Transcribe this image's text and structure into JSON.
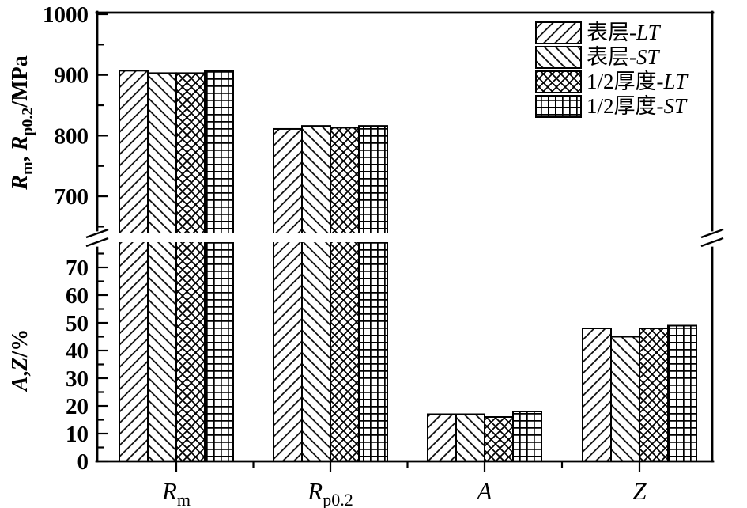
{
  "chart_data": {
    "type": "bar",
    "title": "",
    "background": "#ffffff",
    "foreground": "#000000",
    "axis_break": true,
    "legend_position": "top-right",
    "categories": [
      {
        "id": "Rm",
        "panel": "top",
        "unit": "MPa",
        "parts": [
          {
            "text": "R",
            "italic": true
          },
          {
            "text": "m",
            "sub": true
          }
        ]
      },
      {
        "id": "Rp0.2",
        "panel": "top",
        "unit": "MPa",
        "parts": [
          {
            "text": "R",
            "italic": true
          },
          {
            "text": "p0.2",
            "sub": true
          }
        ]
      },
      {
        "id": "A",
        "panel": "bottom",
        "unit": "%",
        "parts": [
          {
            "text": "A",
            "italic": true
          }
        ]
      },
      {
        "id": "Z",
        "panel": "bottom",
        "unit": "%",
        "parts": [
          {
            "text": "Z",
            "italic": true
          }
        ]
      }
    ],
    "series": [
      {
        "name": "表层-LT",
        "label_parts": [
          {
            "text": "表层"
          },
          {
            "text": "-"
          },
          {
            "text": "LT",
            "italic": true
          }
        ],
        "pattern": "diagonal-forward",
        "values": [
          907,
          811,
          17,
          48
        ]
      },
      {
        "name": "表层-ST",
        "label_parts": [
          {
            "text": "表层"
          },
          {
            "text": "-"
          },
          {
            "text": "ST",
            "italic": true
          }
        ],
        "pattern": "diagonal-backward",
        "values": [
          903,
          816,
          17,
          45
        ]
      },
      {
        "name": "1/2厚度-LT",
        "label_parts": [
          {
            "text": "1/2厚度"
          },
          {
            "text": "-"
          },
          {
            "text": "LT",
            "italic": true
          }
        ],
        "pattern": "crosshatch",
        "values": [
          903,
          813,
          16,
          48
        ]
      },
      {
        "name": "1/2厚度-ST",
        "label_parts": [
          {
            "text": "1/2厚度"
          },
          {
            "text": "-"
          },
          {
            "text": "ST",
            "italic": true
          }
        ],
        "pattern": "grid",
        "values": [
          907,
          816,
          18,
          49
        ]
      }
    ],
    "top_axis": {
      "label": "Rm, Rp0.2/MPa",
      "label_parts": [
        {
          "text": "R",
          "italic": true
        },
        {
          "text": "m",
          "sub": true
        },
        {
          "text": ", "
        },
        {
          "text": "R",
          "italic": true
        },
        {
          "text": "p0.2",
          "sub": true
        },
        {
          "text": "/MPa"
        }
      ],
      "major_ticks": [
        1000,
        900,
        800,
        700
      ],
      "minor_ticks": [
        950,
        850,
        750,
        650
      ],
      "range": [
        645,
        1004
      ]
    },
    "bottom_axis": {
      "label": "A,Z/%",
      "label_parts": [
        {
          "text": "A",
          "italic": true
        },
        {
          "text": ","
        },
        {
          "text": "Z",
          "italic": true
        },
        {
          "text": "/%"
        }
      ],
      "major_ticks": [
        70,
        60,
        50,
        40,
        30,
        20,
        10,
        0
      ],
      "minor_ticks": [
        75,
        65,
        55,
        45,
        35,
        25,
        15,
        5
      ],
      "range": [
        0,
        77
      ]
    }
  }
}
